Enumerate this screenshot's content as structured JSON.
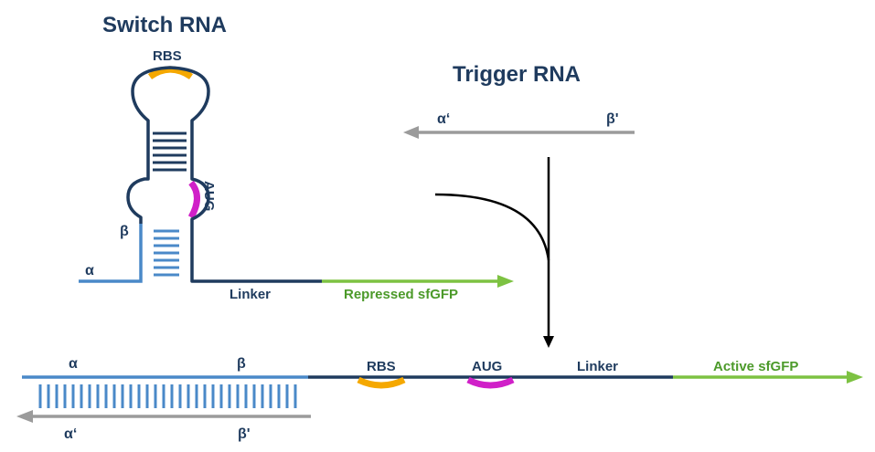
{
  "switch": {
    "title": "Switch RNA",
    "rbs": "RBS",
    "aug": "AUG",
    "beta": "β",
    "alpha": "α",
    "linker": "Linker",
    "gene": "Repressed sfGFP"
  },
  "trigger": {
    "title": "Trigger RNA",
    "alpha_prime": "α‘",
    "beta_prime": "β'"
  },
  "complex": {
    "alpha": "α",
    "beta": "β",
    "alpha_prime": "α‘",
    "beta_prime": "β'",
    "rbs": "RBS",
    "aug": "AUG",
    "linker": "Linker",
    "gene": "Active sfGFP"
  },
  "colors": {
    "dark_strand": "#1f3b5e",
    "light_strand": "#4a89c8",
    "trigger_strand": "#9b9b9b",
    "gfp": "#7dc242",
    "rbs": "#f5a800",
    "aug": "#d020c8"
  }
}
